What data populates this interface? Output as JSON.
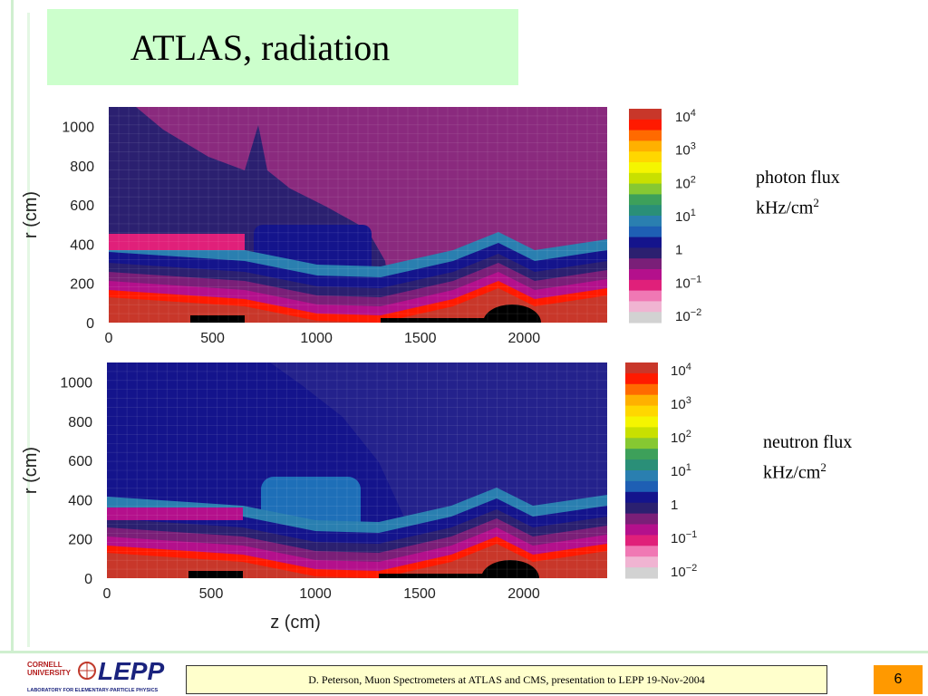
{
  "slide": {
    "title": "ATLAS, radiation",
    "footer": "D. Peterson,  Muon Spectrometers at ATLAS and CMS, presentation to LEPP   19-Nov-2004",
    "page_number": "6",
    "logo": {
      "line1": "CORNELL",
      "line2": "UNIVERSITY",
      "name": "LEPP",
      "caption": "LABORATORY FOR ELEMENTARY-PARTICLE PHYSICS"
    }
  },
  "chart_data": [
    {
      "type": "heatmap",
      "label_lines": [
        "photon flux",
        "kHz/cm"
      ],
      "label_sup": "2",
      "xlabel": "",
      "ylabel": "r (cm)",
      "x_ticks": [
        "0",
        "500",
        "1000",
        "1500",
        "2000"
      ],
      "x_tick_values": [
        0,
        500,
        1000,
        1500,
        2000
      ],
      "y_ticks": [
        "0",
        "200",
        "400",
        "600",
        "800",
        "1000"
      ],
      "y_tick_values": [
        0,
        200,
        400,
        600,
        800,
        1000
      ],
      "xlim": [
        0,
        2400
      ],
      "ylim": [
        0,
        1100
      ],
      "colorbar": {
        "ticks": [
          {
            "base": "10",
            "exp": "4",
            "value": 10000
          },
          {
            "base": "10",
            "exp": "3",
            "value": 1000
          },
          {
            "base": "10",
            "exp": "2",
            "value": 100
          },
          {
            "base": "10",
            "exp": "1",
            "value": 10
          },
          {
            "base": "1",
            "exp": "",
            "value": 1
          },
          {
            "base": "10",
            "exp": "−1",
            "value": 0.1
          },
          {
            "base": "10",
            "exp": "−2",
            "value": 0.01
          }
        ]
      }
    },
    {
      "type": "heatmap",
      "label_lines": [
        "neutron flux",
        "kHz/cm"
      ],
      "label_sup": "2",
      "xlabel": "z (cm)",
      "ylabel": "r (cm)",
      "x_ticks": [
        "0",
        "500",
        "1000",
        "1500",
        "2000"
      ],
      "x_tick_values": [
        0,
        500,
        1000,
        1500,
        2000
      ],
      "y_ticks": [
        "0",
        "200",
        "400",
        "600",
        "800",
        "1000"
      ],
      "y_tick_values": [
        0,
        200,
        400,
        600,
        800,
        1000
      ],
      "xlim": [
        0,
        2400
      ],
      "ylim": [
        0,
        1100
      ],
      "colorbar": {
        "ticks": [
          {
            "base": "10",
            "exp": "4",
            "value": 10000
          },
          {
            "base": "10",
            "exp": "3",
            "value": 1000
          },
          {
            "base": "10",
            "exp": "2",
            "value": 100
          },
          {
            "base": "10",
            "exp": "1",
            "value": 10
          },
          {
            "base": "1",
            "exp": "",
            "value": 1
          },
          {
            "base": "10",
            "exp": "−1",
            "value": 0.1
          },
          {
            "base": "10",
            "exp": "−2",
            "value": 0.01
          }
        ]
      }
    }
  ],
  "colors": {
    "scale": [
      "#c8372a",
      "#ff1a00",
      "#ff6a00",
      "#ffb000",
      "#ffd700",
      "#f5f500",
      "#c8e000",
      "#86c832",
      "#3da05a",
      "#2a8f78",
      "#2a7fb0",
      "#1e5fb4",
      "#14148c",
      "#2b2070",
      "#7a1f78",
      "#b4108c",
      "#e0207a",
      "#f078b4",
      "#f0b4d2",
      "#d2d2d2"
    ],
    "title_bg": "#ccffcc",
    "footer_bg": "#ffffcc",
    "page_bg": "#ff9900"
  }
}
